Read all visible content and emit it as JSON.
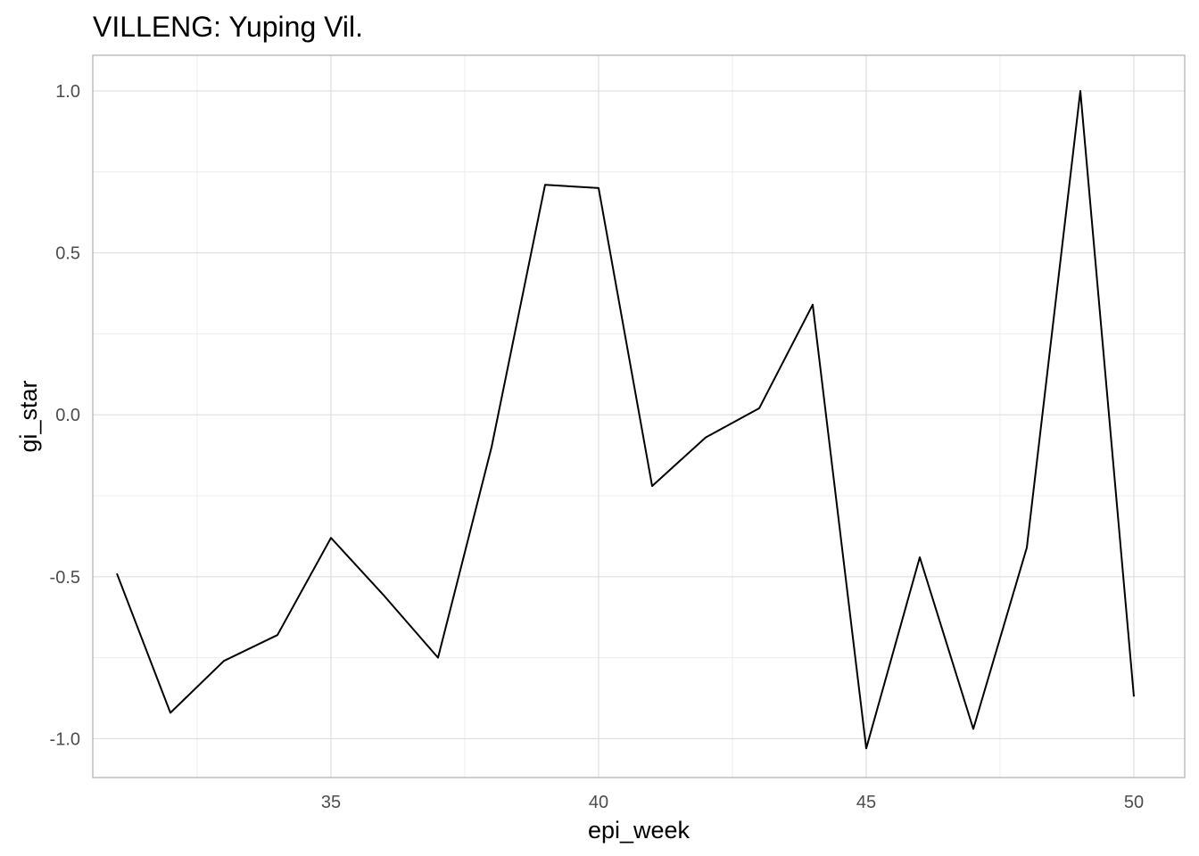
{
  "chart_data": {
    "type": "line",
    "title": "VILLENG: Yuping Vil.",
    "xlabel": "epi_week",
    "ylabel": "gi_star",
    "xlim": [
      30.55,
      50.95
    ],
    "ylim": [
      -1.12,
      1.11
    ],
    "x_ticks": [
      35,
      40,
      45,
      50
    ],
    "x_tick_labels": [
      "35",
      "40",
      "45",
      "50"
    ],
    "x_minor": [
      32.5,
      37.5,
      42.5,
      47.5
    ],
    "y_ticks": [
      -1.0,
      -0.5,
      0.0,
      0.5,
      1.0
    ],
    "y_tick_labels": [
      "-1.0",
      "-0.5",
      "0.0",
      "0.5",
      "1.0"
    ],
    "y_minor": [
      -0.75,
      -0.25,
      0.25,
      0.75
    ],
    "grid": true,
    "legend": "none",
    "series": [
      {
        "color": "#000000",
        "x": [
          31,
          32,
          33,
          34,
          35,
          36,
          37,
          38,
          39,
          40,
          41,
          42,
          43,
          44,
          45,
          46,
          47,
          48,
          49,
          50
        ],
        "y": [
          -0.49,
          -0.92,
          -0.76,
          -0.68,
          -0.38,
          -0.56,
          -0.75,
          -0.1,
          0.71,
          0.7,
          -0.22,
          -0.07,
          0.02,
          0.34,
          -1.03,
          -0.44,
          -0.97,
          -0.41,
          1.0,
          -0.87
        ]
      }
    ]
  }
}
